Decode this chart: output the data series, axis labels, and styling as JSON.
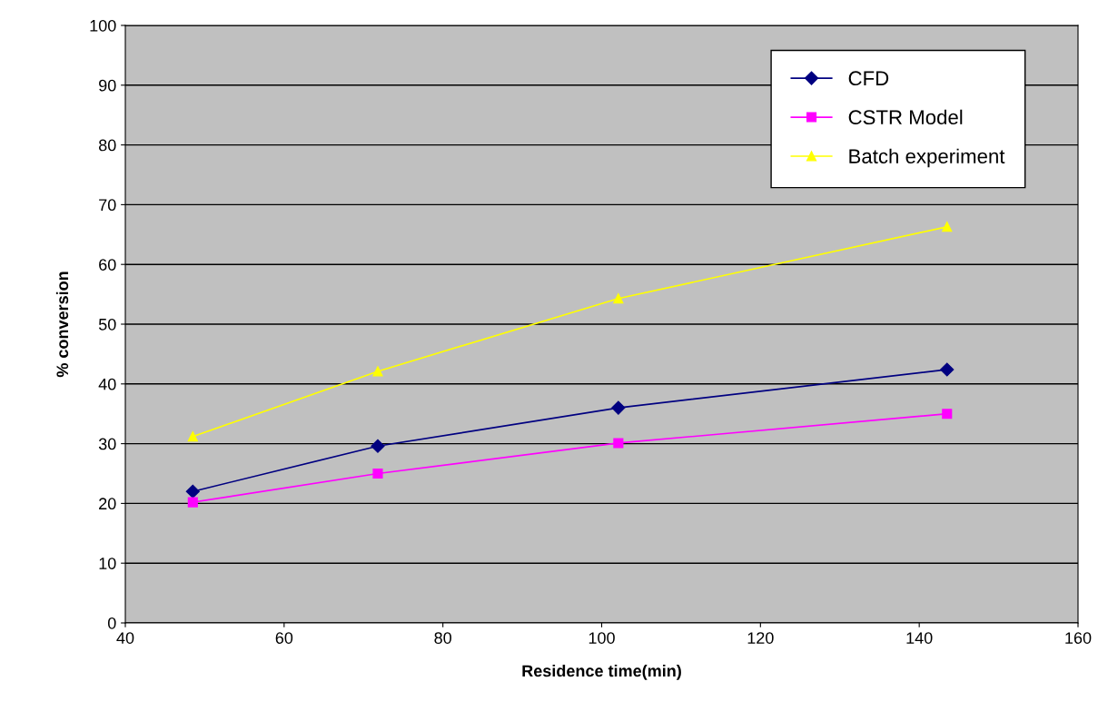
{
  "chart_data": {
    "type": "line",
    "xlabel": "Residence time(min)",
    "ylabel": "% conversion",
    "x": [
      48.5,
      71.8,
      102.1,
      143.5
    ],
    "series": [
      {
        "name": "CFD",
        "color": "#000080",
        "marker": "diamond",
        "values": [
          22.0,
          29.6,
          36.0,
          42.4
        ]
      },
      {
        "name": "CSTR Model",
        "color": "#ff00ff",
        "marker": "square",
        "values": [
          20.2,
          25.0,
          30.1,
          35.0
        ]
      },
      {
        "name": "Batch experiment",
        "color": "#ffff00",
        "marker": "triangle",
        "values": [
          31.2,
          42.1,
          54.3,
          66.3
        ]
      }
    ],
    "xlim": [
      40,
      160
    ],
    "xticks": [
      40,
      60,
      80,
      100,
      120,
      140,
      160
    ],
    "ylim": [
      0,
      100
    ],
    "yticks": [
      0,
      10,
      20,
      30,
      40,
      50,
      60,
      70,
      80,
      90,
      100
    ],
    "grid": "y",
    "legend": "top right",
    "line_style": "solid"
  }
}
